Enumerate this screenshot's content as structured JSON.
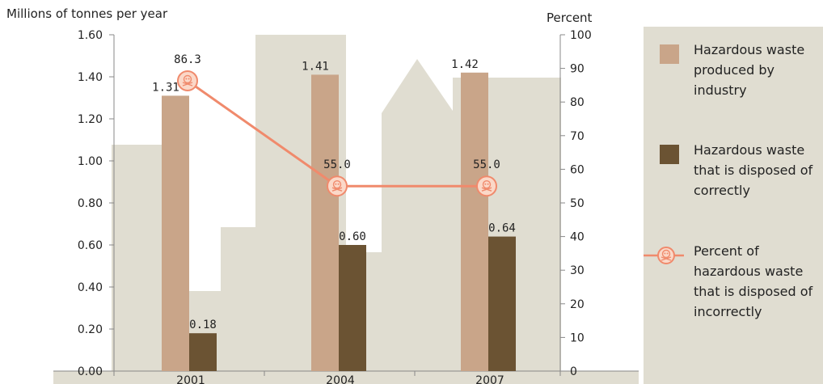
{
  "chart_data": {
    "type": "bar",
    "categories": [
      "2001",
      "2004",
      "2007"
    ],
    "y_left": {
      "label": "Millions of tonnes per year",
      "ylim": [
        0,
        1.6
      ],
      "ticks": [
        "0.00",
        "0.20",
        "0.40",
        "0.60",
        "0.80",
        "1.00",
        "1.20",
        "1.40",
        "1.60"
      ]
    },
    "y_right": {
      "label": "Percent",
      "ylim": [
        0,
        100
      ],
      "ticks": [
        "0",
        "10",
        "20",
        "30",
        "40",
        "50",
        "60",
        "70",
        "80",
        "90",
        "100"
      ]
    },
    "series": [
      {
        "name": "Hazardous waste produced by industry",
        "type": "bar",
        "axis": "left",
        "values": [
          1.31,
          1.41,
          1.42
        ],
        "labels": [
          "1.31",
          "1.41",
          "1.42"
        ],
        "color": "#c9a589"
      },
      {
        "name": "Hazardous waste that is disposed of correctly",
        "type": "bar",
        "axis": "left",
        "values": [
          0.18,
          0.6,
          0.64
        ],
        "labels": [
          "0.18",
          "0.60",
          "0.64"
        ],
        "color": "#6b5333"
      },
      {
        "name": "Percent of hazardous waste that is disposed of incorrectly",
        "type": "line",
        "axis": "right",
        "values": [
          86.3,
          55.0,
          55.0
        ],
        "labels": [
          "86.3",
          "55.0",
          "55.0"
        ],
        "color": "#f08a6c"
      }
    ],
    "legend_position": "right",
    "grid": false
  },
  "colors": {
    "background_shapes": "#e0ddd1",
    "legend_panel": "#e0ddd1",
    "axis": "#888888"
  },
  "legend_icons": [
    "square-swatch",
    "square-swatch",
    "skull-marker"
  ]
}
